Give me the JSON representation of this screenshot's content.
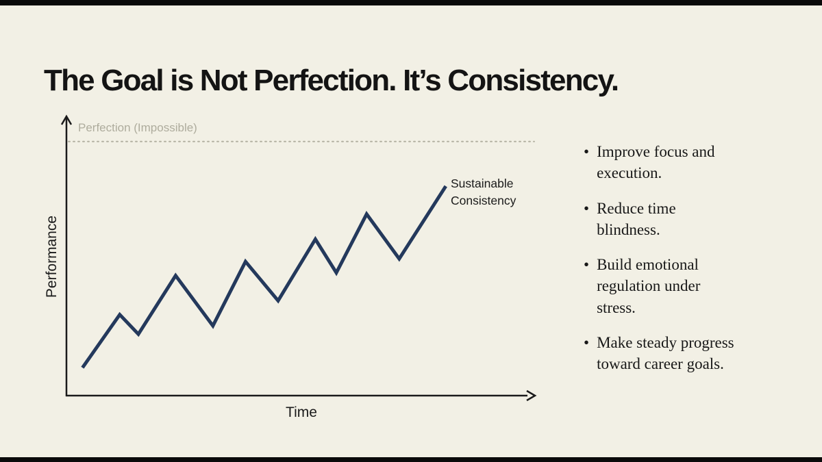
{
  "page": {
    "title": "The Goal is Not Perfection. It’s Consistency.",
    "background_color": "#f2f0e5",
    "edge_bar_color": "#0a0a0a"
  },
  "chart": {
    "ylabel": "Performance",
    "xlabel": "Time",
    "reference_label": "Perfection (Impossible)",
    "line_label": "Sustainable\nConsistency",
    "line_color": "#24395c",
    "axis_color": "#1a1a1a",
    "reference_line_color": "#b3b1a2"
  },
  "benefits": {
    "bullet": "•",
    "items": [
      "Improve focus and\nexecution.",
      "Reduce time\nblindness.",
      "Build emotional\nregulation under\nstress.",
      "Make steady progress\ntoward career goals."
    ]
  },
  "chart_data": {
    "type": "line",
    "title": "The Goal is Not Perfection. It’s Consistency.",
    "xlabel": "Time",
    "ylabel": "Performance",
    "xlim": [
      0,
      10
    ],
    "ylim": [
      0,
      100
    ],
    "grid": false,
    "legend": "inline-annotation",
    "series": [
      {
        "name": "Sustainable Consistency",
        "x": [
          0.3,
          1.1,
          1.5,
          2.3,
          3.1,
          3.8,
          4.5,
          5.3,
          5.75,
          6.4,
          7.1,
          8.1
        ],
        "y": [
          10,
          29,
          22,
          43,
          25,
          48,
          34,
          56,
          44,
          65,
          49,
          75
        ]
      }
    ],
    "reference_line": {
      "label": "Perfection (Impossible)",
      "y": 91,
      "style": "dotted"
    }
  }
}
